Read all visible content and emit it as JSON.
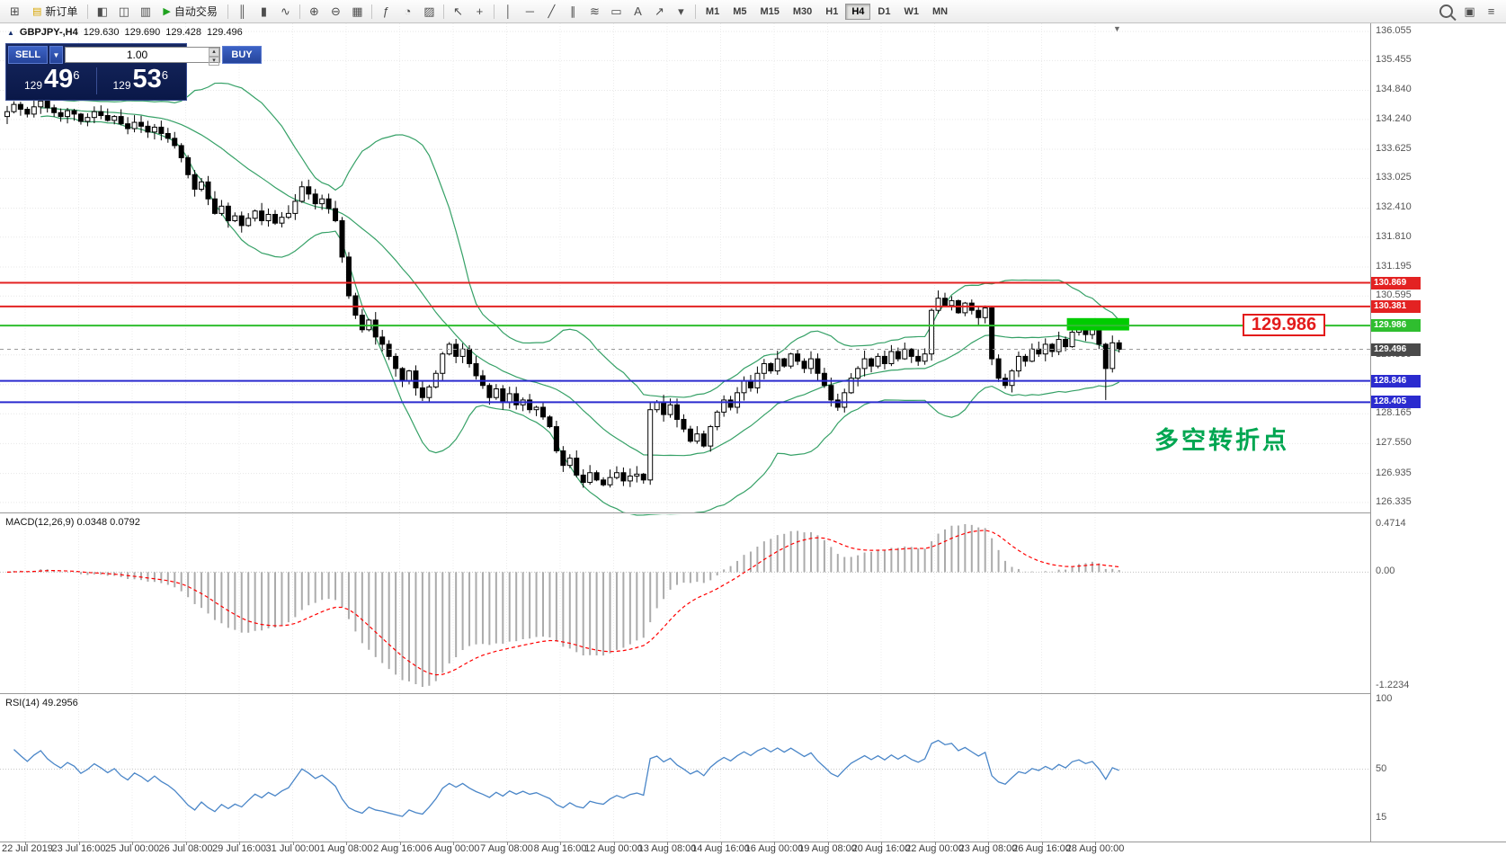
{
  "toolbar": {
    "items": [
      {
        "type": "icon",
        "name": "new-chart-icon",
        "glyph": "⊞"
      },
      {
        "type": "button",
        "name": "new-order-button",
        "label": "新订单",
        "icon": "▤",
        "icon_name": "order-doc-icon",
        "icon_color": "#d7a500"
      },
      {
        "type": "sep"
      },
      {
        "type": "icon",
        "name": "market-watch-icon",
        "glyph": "◧"
      },
      {
        "type": "icon",
        "name": "navigator-icon",
        "glyph": "◫"
      },
      {
        "type": "icon",
        "name": "terminal-icon",
        "glyph": "▥"
      },
      {
        "type": "button",
        "name": "autotrading-button",
        "label": "自动交易",
        "icon": "▶",
        "icon_name": "play-icon",
        "icon_color": "#1fa21f"
      },
      {
        "type": "sep"
      },
      {
        "type": "icon",
        "name": "chart-bars-icon",
        "glyph": "║"
      },
      {
        "type": "icon",
        "name": "chart-candles-icon",
        "glyph": "▮"
      },
      {
        "type": "icon",
        "name": "chart-line-icon",
        "glyph": "∿"
      },
      {
        "type": "sep"
      },
      {
        "type": "icon",
        "name": "zoom-in-icon",
        "glyph": "⊕"
      },
      {
        "type": "icon",
        "name": "zoom-out-icon",
        "glyph": "⊖"
      },
      {
        "type": "icon",
        "name": "tile-windows-icon",
        "glyph": "▦"
      },
      {
        "type": "sep"
      },
      {
        "type": "icon",
        "name": "indicators-icon",
        "glyph": "ƒ"
      },
      {
        "type": "icon",
        "name": "periods-icon",
        "glyph": "◔"
      },
      {
        "type": "icon",
        "name": "template-icon",
        "glyph": "▨"
      },
      {
        "type": "sep"
      },
      {
        "type": "icon",
        "name": "cursor-icon",
        "glyph": "↖"
      },
      {
        "type": "icon",
        "name": "crosshair-icon",
        "glyph": "+"
      },
      {
        "type": "sep"
      },
      {
        "type": "icon",
        "name": "vertical-line-icon",
        "glyph": "│"
      },
      {
        "type": "icon",
        "name": "horizontal-line-icon",
        "glyph": "─"
      },
      {
        "type": "icon",
        "name": "trendline-icon",
        "glyph": "╱"
      },
      {
        "type": "icon",
        "name": "channel-icon",
        "glyph": "∥"
      },
      {
        "type": "icon",
        "name": "fibonacci-icon",
        "glyph": "≋"
      },
      {
        "type": "icon",
        "name": "shapes-icon",
        "glyph": "▭"
      },
      {
        "type": "icon",
        "name": "text-icon",
        "glyph": "A"
      },
      {
        "type": "icon",
        "name": "arrows-icon",
        "glyph": "↗"
      },
      {
        "type": "icon",
        "name": "objects-dropdown-icon",
        "glyph": "▾"
      },
      {
        "type": "sep"
      },
      {
        "type": "tf"
      },
      {
        "type": "spacer"
      },
      {
        "type": "search"
      },
      {
        "type": "icon",
        "name": "favorites-icon",
        "glyph": "▣"
      },
      {
        "type": "icon",
        "name": "menu-icon",
        "glyph": "≡"
      }
    ],
    "timeframes": [
      "M1",
      "M5",
      "M15",
      "M30",
      "H1",
      "H4",
      "D1",
      "W1",
      "MN"
    ],
    "active_timeframe": "H4"
  },
  "icons": {
    "collapse": "▲",
    "shift_marker": "▼",
    "spin_up": "▴",
    "spin_down": "▾",
    "dropdown": "▼"
  },
  "chart": {
    "title": "GBPJPY-,H4",
    "open": "129.630",
    "high": "129.690",
    "low": "129.428",
    "close": "129.496"
  },
  "trade_panel": {
    "sell_label": "SELL",
    "buy_label": "BUY",
    "volume": "1.00",
    "bid": {
      "prefix": "129",
      "big": "49",
      "sup": "6"
    },
    "ask": {
      "prefix": "129",
      "big": "53",
      "sup": "6"
    }
  },
  "price_scale": {
    "max": 136.055,
    "min": 126.335,
    "labels": [
      136.055,
      135.455,
      134.84,
      134.24,
      133.625,
      133.025,
      132.41,
      131.81,
      131.195,
      130.595,
      129.98,
      129.38,
      128.765,
      128.165,
      127.55,
      126.935,
      126.335
    ]
  },
  "current_price": {
    "bid": 129.496,
    "label": "129.496",
    "box_color": "#4a4a4a"
  },
  "annotations": {
    "big_price_label": "129.986",
    "turning_point_text": "多空转折点"
  },
  "macd": {
    "label": "MACD(12,26,9) 0.0348 0.0792",
    "scale": [
      "0.4714",
      "0.00",
      "-1.2234"
    ]
  },
  "rsi": {
    "label": "RSI(14) 49.2956",
    "scale": [
      "100",
      "50",
      "15"
    ]
  },
  "time_axis": [
    "22 Jul 2019",
    "23 Jul 16:00",
    "25 Jul 00:00",
    "26 Jul 08:00",
    "29 Jul 16:00",
    "31 Jul 00:00",
    "1 Aug 08:00",
    "2 Aug 16:00",
    "6 Aug 00:00",
    "7 Aug 08:00",
    "8 Aug 16:00",
    "12 Aug 00:00",
    "13 Aug 08:00",
    "14 Aug 16:00",
    "16 Aug 00:00",
    "19 Aug 08:00",
    "20 Aug 16:00",
    "22 Aug 00:00",
    "23 Aug 08:00",
    "26 Aug 16:00",
    "28 Aug 00:00"
  ],
  "colors": {
    "bull": "#ffffff",
    "bear": "#000000",
    "wick": "#000000",
    "bollinger": "#36a167",
    "macd_hist": "#ababab",
    "macd_signal": "#ff0000",
    "rsi_line": "#4a86c8",
    "highlight": "#00cc00",
    "annotation_green": "#00a651",
    "annotation_red": "#e31b1b",
    "level_red": "#e32222",
    "level_green": "#2fbe2f",
    "level_blue": "#2b2bcf"
  },
  "chart_data": {
    "type": "candlestick",
    "symbol": "GBPJPY-",
    "timeframe": "H4",
    "ylim": [
      126.335,
      136.055
    ],
    "first_open": 134.3,
    "closes": [
      134.4,
      134.55,
      134.45,
      134.35,
      134.5,
      134.62,
      134.48,
      134.38,
      134.3,
      134.42,
      134.35,
      134.2,
      134.28,
      134.4,
      134.32,
      134.22,
      134.3,
      134.15,
      134.05,
      134.18,
      134.1,
      133.98,
      134.08,
      133.95,
      133.85,
      133.7,
      133.45,
      133.1,
      132.8,
      132.95,
      132.6,
      132.3,
      132.45,
      132.15,
      132.25,
      132.05,
      132.2,
      132.35,
      132.15,
      132.28,
      132.1,
      132.22,
      132.3,
      132.55,
      132.85,
      132.7,
      132.5,
      132.6,
      132.4,
      132.15,
      131.4,
      130.6,
      130.2,
      129.9,
      130.1,
      129.75,
      129.6,
      129.35,
      129.1,
      128.85,
      129.05,
      128.7,
      128.5,
      128.72,
      129.0,
      129.4,
      129.6,
      129.35,
      129.5,
      129.2,
      128.95,
      128.75,
      128.5,
      128.68,
      128.4,
      128.58,
      128.35,
      128.45,
      128.25,
      128.3,
      128.1,
      127.9,
      127.4,
      127.1,
      127.25,
      126.9,
      126.75,
      126.95,
      126.8,
      126.7,
      126.85,
      126.95,
      126.78,
      126.88,
      126.92,
      126.8,
      128.25,
      128.4,
      128.15,
      128.35,
      128.05,
      127.85,
      127.6,
      127.75,
      127.5,
      127.9,
      128.2,
      128.45,
      128.3,
      128.6,
      128.85,
      128.7,
      129.0,
      129.2,
      129.05,
      129.3,
      129.15,
      129.4,
      129.25,
      129.1,
      129.3,
      129.0,
      128.75,
      128.45,
      128.3,
      128.6,
      128.9,
      129.1,
      129.3,
      129.15,
      129.35,
      129.2,
      129.45,
      129.3,
      129.5,
      129.35,
      129.25,
      129.4,
      130.3,
      130.55,
      130.4,
      130.5,
      130.25,
      130.45,
      130.3,
      130.15,
      130.35,
      129.3,
      128.9,
      128.75,
      129.05,
      129.35,
      129.25,
      129.5,
      129.4,
      129.6,
      129.45,
      129.7,
      129.55,
      129.85,
      129.95,
      129.8,
      129.9,
      129.6,
      129.1,
      129.63,
      129.496
    ],
    "wicks": [
      {
        "i": 5,
        "h": 134.8
      },
      {
        "i": 96,
        "h": 128.42,
        "l": 126.7
      },
      {
        "i": 164,
        "l": 128.45
      },
      {
        "i": 166,
        "h": 129.69,
        "l": 129.428
      }
    ],
    "levels": [
      {
        "price": 130.869,
        "label": "130.869",
        "color": "#e32222"
      },
      {
        "price": 130.381,
        "label": "130.381",
        "color": "#e32222"
      },
      {
        "price": 129.986,
        "label": "129.986",
        "color": "#2fbe2f"
      },
      {
        "price": 128.846,
        "label": "128.846",
        "color": "#2b2bcf"
      },
      {
        "price": 128.405,
        "label": "128.405",
        "color": "#2b2bcf"
      }
    ],
    "highlight_rect": {
      "i1": 158.2,
      "i2": 167.5,
      "p1": 130.14,
      "p2": 129.885
    },
    "indicators": {
      "bollinger": {
        "period": 20,
        "deviation": 2
      },
      "macd": [
        12,
        26,
        9
      ],
      "rsi": 14
    }
  }
}
